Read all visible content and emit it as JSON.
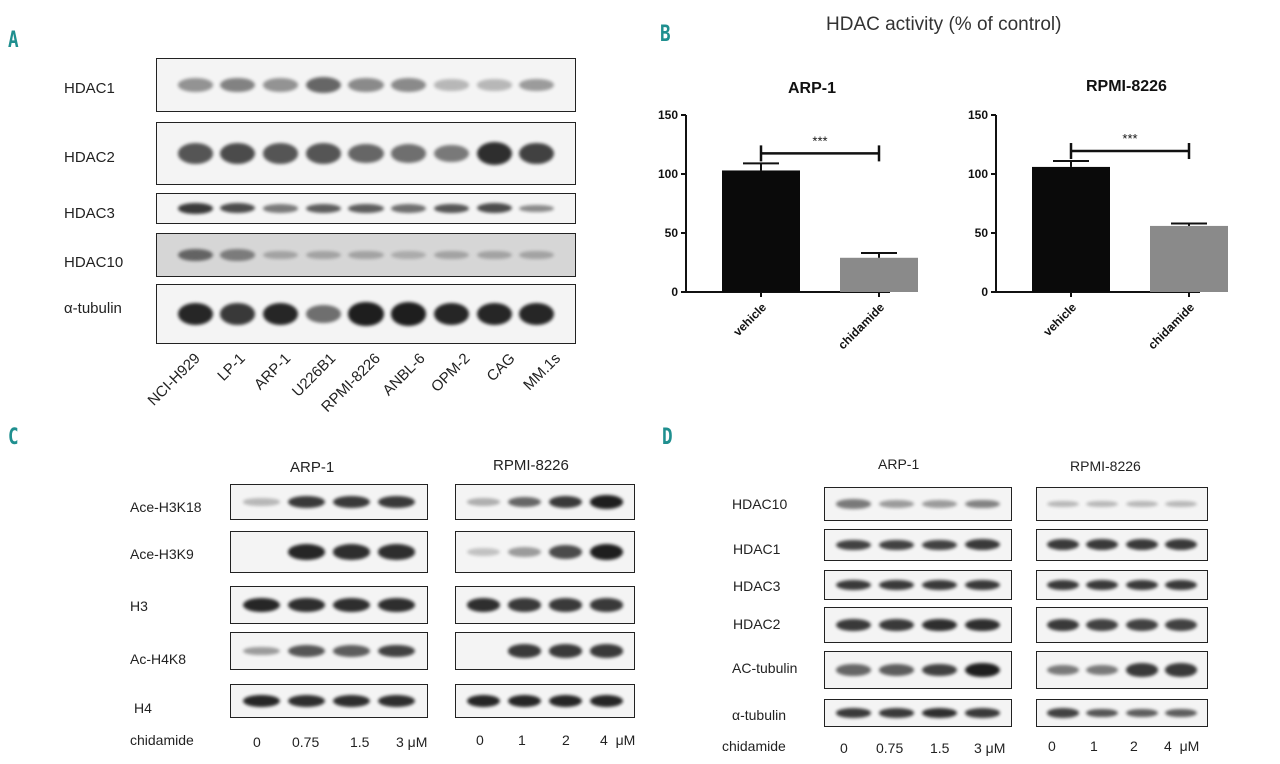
{
  "panels": {
    "A": {
      "letter": "A",
      "rows": [
        "HDAC1",
        "HDAC2",
        "HDAC3",
        "HDAC10",
        "α-tubulin"
      ],
      "lanes": [
        "NCI-H929",
        "LP-1",
        "ARP-1",
        "U226B1",
        "RPMI-8226",
        "ANBL-6",
        "OPM-2",
        "CAG",
        "MM.1s"
      ]
    },
    "B": {
      "letter": "B",
      "title": "HDAC activity (% of control)"
    },
    "C": {
      "letter": "C",
      "cell_lines": [
        "ARP-1",
        "RPMI-8226"
      ],
      "rows": [
        "Ace-H3K18",
        "Ace-H3K9",
        "H3",
        "Ac-H4K8",
        "H4"
      ],
      "treatment_label": "chidamide",
      "doses_left": [
        "0",
        "0.75",
        "1.5",
        "3 μM"
      ],
      "doses_right": [
        "0",
        "1",
        "2",
        "4  μM"
      ]
    },
    "D": {
      "letter": "D",
      "cell_lines": [
        "ARP-1",
        "RPMI-8226"
      ],
      "rows": [
        "HDAC10",
        "HDAC1",
        "HDAC3",
        "HDAC2",
        "AC-tubulin",
        "α-tubulin"
      ],
      "treatment_label": "chidamide",
      "doses_left": [
        "0",
        "0.75",
        "1.5",
        "3 μM"
      ],
      "doses_right": [
        "0",
        "1",
        "2",
        "4  μM"
      ]
    }
  },
  "chart_data": [
    {
      "type": "bar",
      "title": "ARP-1",
      "categories": [
        "vehicle",
        "chidamide"
      ],
      "values": [
        103,
        29
      ],
      "errors": [
        6,
        4
      ],
      "ylim": [
        0,
        150
      ],
      "yticks": [
        "0",
        "50",
        "100",
        "150"
      ],
      "significance": "***",
      "colors": [
        "#0a0a0a",
        "#8a8a8a"
      ]
    },
    {
      "type": "bar",
      "title": "RPMI-8226",
      "categories": [
        "vehicle",
        "chidamide"
      ],
      "values": [
        106,
        56
      ],
      "errors": [
        5,
        2
      ],
      "ylim": [
        0,
        150
      ],
      "yticks": [
        "0",
        "50",
        "100",
        "150"
      ],
      "significance": "***",
      "colors": [
        "#0a0a0a",
        "#8a8a8a"
      ]
    }
  ],
  "blot_intensity": {
    "A": [
      [
        0.35,
        0.45,
        0.35,
        0.6,
        0.4,
        0.4,
        0.15,
        0.15,
        0.3
      ],
      [
        0.7,
        0.75,
        0.7,
        0.7,
        0.6,
        0.55,
        0.5,
        0.9,
        0.8
      ],
      [
        0.85,
        0.75,
        0.5,
        0.65,
        0.65,
        0.55,
        0.7,
        0.75,
        0.4
      ],
      [
        0.55,
        0.4,
        0.15,
        0.15,
        0.15,
        0.1,
        0.15,
        0.15,
        0.15
      ],
      [
        0.95,
        0.85,
        0.95,
        0.55,
        1,
        1,
        0.95,
        0.95,
        0.95
      ]
    ],
    "C_left": [
      [
        0.15,
        0.85,
        0.85,
        0.85
      ],
      [
        0.0,
        0.95,
        0.9,
        0.9
      ],
      [
        0.95,
        0.9,
        0.9,
        0.9
      ],
      [
        0.3,
        0.7,
        0.65,
        0.8
      ],
      [
        0.95,
        0.9,
        0.9,
        0.9
      ]
    ],
    "C_right": [
      [
        0.2,
        0.6,
        0.85,
        1
      ],
      [
        0.1,
        0.3,
        0.75,
        1
      ],
      [
        0.9,
        0.85,
        0.85,
        0.85
      ],
      [
        0.0,
        0.85,
        0.85,
        0.85
      ],
      [
        0.95,
        0.95,
        0.95,
        0.95
      ]
    ],
    "D_left": [
      [
        0.5,
        0.3,
        0.3,
        0.45
      ],
      [
        0.8,
        0.8,
        0.8,
        0.85
      ],
      [
        0.85,
        0.85,
        0.85,
        0.85
      ],
      [
        0.85,
        0.85,
        0.9,
        0.9
      ],
      [
        0.6,
        0.65,
        0.8,
        1
      ],
      [
        0.85,
        0.85,
        0.9,
        0.85
      ]
    ],
    "D_right": [
      [
        0.15,
        0.15,
        0.15,
        0.15
      ],
      [
        0.85,
        0.85,
        0.85,
        0.85
      ],
      [
        0.85,
        0.85,
        0.85,
        0.85
      ],
      [
        0.85,
        0.8,
        0.8,
        0.8
      ],
      [
        0.5,
        0.5,
        0.85,
        0.85
      ],
      [
        0.8,
        0.7,
        0.65,
        0.65
      ]
    ]
  }
}
